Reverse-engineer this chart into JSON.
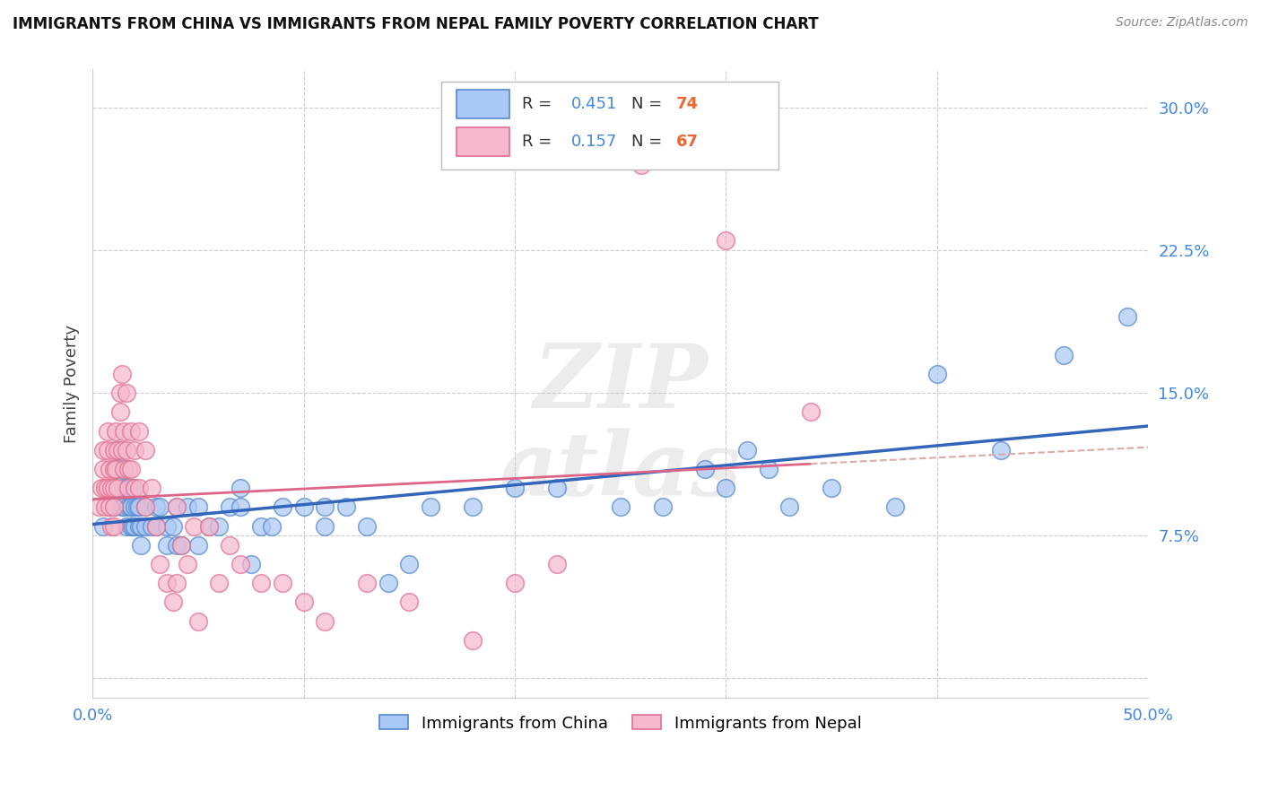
{
  "title": "IMMIGRANTS FROM CHINA VS IMMIGRANTS FROM NEPAL FAMILY POVERTY CORRELATION CHART",
  "source": "Source: ZipAtlas.com",
  "ylabel": "Family Poverty",
  "xlim": [
    0.0,
    0.5
  ],
  "ylim": [
    -0.01,
    0.32
  ],
  "china_R": 0.451,
  "china_N": 74,
  "nepal_R": 0.157,
  "nepal_N": 67,
  "china_color": "#aac8f5",
  "nepal_color": "#f5b8cc",
  "china_edge_color": "#5588cc",
  "nepal_edge_color": "#e07090",
  "china_line_color": "#3366bb",
  "nepal_line_color": "#dd6688",
  "nepal_dashed_color": "#ddaaaa",
  "legend_label_china": "Immigrants from China",
  "legend_label_nepal": "Immigrants from Nepal",
  "r_color": "#4488dd",
  "n_color": "#ee6633",
  "china_scatter_x": [
    0.005,
    0.008,
    0.01,
    0.01,
    0.012,
    0.012,
    0.014,
    0.014,
    0.015,
    0.015,
    0.016,
    0.016,
    0.017,
    0.017,
    0.018,
    0.018,
    0.018,
    0.019,
    0.019,
    0.02,
    0.02,
    0.021,
    0.022,
    0.022,
    0.023,
    0.023,
    0.025,
    0.025,
    0.028,
    0.03,
    0.03,
    0.032,
    0.035,
    0.035,
    0.038,
    0.04,
    0.04,
    0.042,
    0.045,
    0.05,
    0.05,
    0.055,
    0.06,
    0.065,
    0.07,
    0.07,
    0.075,
    0.08,
    0.085,
    0.09,
    0.1,
    0.11,
    0.11,
    0.12,
    0.13,
    0.14,
    0.15,
    0.16,
    0.18,
    0.2,
    0.22,
    0.25,
    0.27,
    0.29,
    0.3,
    0.31,
    0.32,
    0.33,
    0.35,
    0.38,
    0.4,
    0.43,
    0.46,
    0.49
  ],
  "china_scatter_y": [
    0.08,
    0.09,
    0.1,
    0.09,
    0.11,
    0.12,
    0.09,
    0.1,
    0.09,
    0.11,
    0.1,
    0.08,
    0.09,
    0.1,
    0.09,
    0.08,
    0.09,
    0.08,
    0.1,
    0.09,
    0.08,
    0.09,
    0.08,
    0.09,
    0.07,
    0.08,
    0.09,
    0.08,
    0.08,
    0.09,
    0.08,
    0.09,
    0.07,
    0.08,
    0.08,
    0.07,
    0.09,
    0.07,
    0.09,
    0.07,
    0.09,
    0.08,
    0.08,
    0.09,
    0.09,
    0.1,
    0.06,
    0.08,
    0.08,
    0.09,
    0.09,
    0.09,
    0.08,
    0.09,
    0.08,
    0.05,
    0.06,
    0.09,
    0.09,
    0.1,
    0.1,
    0.09,
    0.09,
    0.11,
    0.1,
    0.12,
    0.11,
    0.09,
    0.1,
    0.09,
    0.16,
    0.12,
    0.17,
    0.19
  ],
  "nepal_scatter_x": [
    0.003,
    0.004,
    0.005,
    0.005,
    0.006,
    0.006,
    0.007,
    0.007,
    0.007,
    0.008,
    0.008,
    0.009,
    0.009,
    0.01,
    0.01,
    0.01,
    0.01,
    0.01,
    0.011,
    0.011,
    0.012,
    0.012,
    0.013,
    0.013,
    0.014,
    0.014,
    0.015,
    0.015,
    0.016,
    0.016,
    0.017,
    0.017,
    0.018,
    0.018,
    0.02,
    0.02,
    0.022,
    0.022,
    0.025,
    0.025,
    0.028,
    0.03,
    0.032,
    0.035,
    0.038,
    0.04,
    0.04,
    0.042,
    0.045,
    0.048,
    0.05,
    0.055,
    0.06,
    0.065,
    0.07,
    0.08,
    0.09,
    0.1,
    0.11,
    0.13,
    0.15,
    0.18,
    0.2,
    0.22,
    0.26,
    0.3,
    0.34
  ],
  "nepal_scatter_y": [
    0.09,
    0.1,
    0.11,
    0.12,
    0.1,
    0.09,
    0.13,
    0.12,
    0.1,
    0.11,
    0.09,
    0.1,
    0.08,
    0.12,
    0.11,
    0.1,
    0.09,
    0.08,
    0.13,
    0.11,
    0.12,
    0.1,
    0.15,
    0.14,
    0.12,
    0.16,
    0.13,
    0.11,
    0.12,
    0.15,
    0.1,
    0.11,
    0.13,
    0.11,
    0.12,
    0.1,
    0.1,
    0.13,
    0.09,
    0.12,
    0.1,
    0.08,
    0.06,
    0.05,
    0.04,
    0.09,
    0.05,
    0.07,
    0.06,
    0.08,
    0.03,
    0.08,
    0.05,
    0.07,
    0.06,
    0.05,
    0.05,
    0.04,
    0.03,
    0.05,
    0.04,
    0.02,
    0.05,
    0.06,
    0.27,
    0.23,
    0.14
  ]
}
